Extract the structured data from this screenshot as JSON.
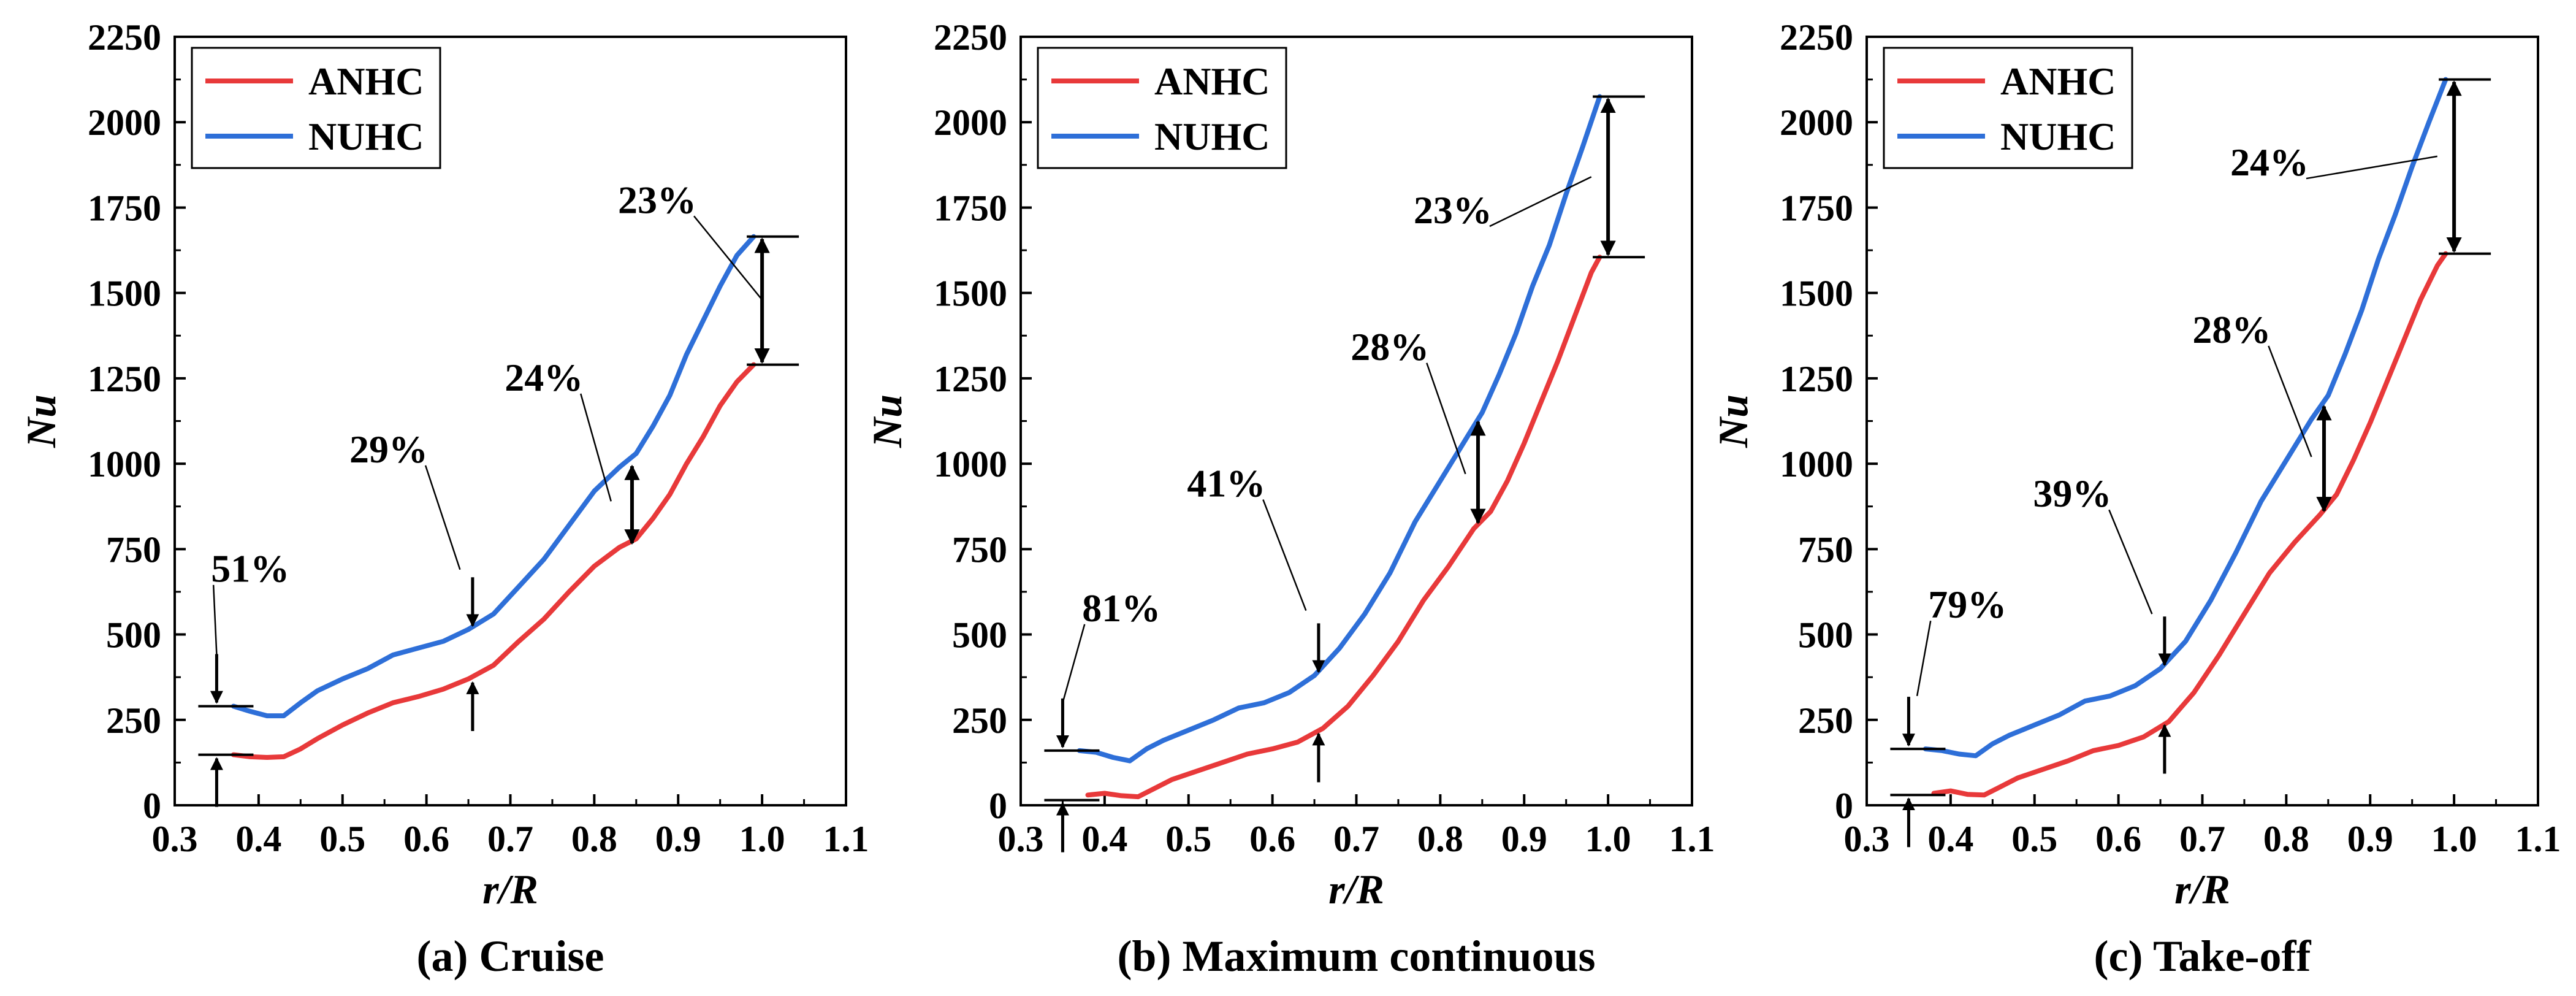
{
  "chart_data": [
    {
      "type": "line",
      "caption": "(a) Cruise",
      "xlabel": "r/R",
      "ylabel": "Nu",
      "xlim": [
        0.3,
        1.1
      ],
      "ylim": [
        0,
        2250
      ],
      "xticks": [
        "0.3",
        "0.4",
        "0.5",
        "0.6",
        "0.7",
        "0.8",
        "0.9",
        "1.0",
        "1.1"
      ],
      "yticks": [
        "0",
        "250",
        "500",
        "750",
        "1000",
        "1250",
        "1500",
        "1750",
        "2000",
        "2250"
      ],
      "legend": {
        "position": "top-left"
      },
      "series": [
        {
          "name": "ANHC",
          "color": "#e8393a",
          "x": [
            0.37,
            0.39,
            0.41,
            0.43,
            0.45,
            0.47,
            0.5,
            0.53,
            0.56,
            0.59,
            0.62,
            0.65,
            0.68,
            0.71,
            0.74,
            0.77,
            0.8,
            0.83,
            0.85,
            0.87,
            0.89,
            0.91,
            0.93,
            0.95,
            0.97,
            0.99
          ],
          "y": [
            148,
            142,
            140,
            142,
            165,
            195,
            235,
            270,
            300,
            318,
            340,
            370,
            410,
            480,
            545,
            625,
            700,
            755,
            780,
            840,
            910,
            1000,
            1080,
            1170,
            1240,
            1290
          ]
        },
        {
          "name": "NUHC",
          "color": "#2e6fd8",
          "x": [
            0.37,
            0.39,
            0.41,
            0.43,
            0.45,
            0.47,
            0.5,
            0.53,
            0.56,
            0.59,
            0.62,
            0.65,
            0.68,
            0.71,
            0.74,
            0.77,
            0.8,
            0.83,
            0.85,
            0.87,
            0.89,
            0.91,
            0.93,
            0.95,
            0.97,
            0.99
          ],
          "y": [
            290,
            275,
            262,
            262,
            300,
            335,
            370,
            400,
            440,
            460,
            480,
            515,
            560,
            640,
            720,
            820,
            920,
            990,
            1030,
            1110,
            1200,
            1320,
            1420,
            1520,
            1610,
            1665
          ]
        }
      ],
      "annotations": [
        {
          "label": "51%",
          "at_r": 0.35,
          "low": 148,
          "high": 290,
          "style": "inward",
          "text_x": 0.39,
          "text_y": 690,
          "leader_to": [
            0.35,
            440
          ]
        },
        {
          "label": "29%",
          "at_r": 0.655,
          "low": 370,
          "high": 515,
          "style": "inward",
          "text_x": 0.555,
          "text_y": 1040,
          "leader_to": [
            0.64,
            690
          ]
        },
        {
          "label": "24%",
          "at_r": 0.845,
          "low": 760,
          "high": 1000,
          "style": "double",
          "text_x": 0.74,
          "text_y": 1250,
          "leader_to": [
            0.82,
            890
          ]
        },
        {
          "label": "23%",
          "at_r": 1.0,
          "low": 1290,
          "high": 1665,
          "style": "double",
          "text_x": 0.875,
          "text_y": 1770,
          "leader_to": [
            1.0,
            1480
          ]
        }
      ]
    },
    {
      "type": "line",
      "caption": "(b) Maximum continuous",
      "xlabel": "r/R",
      "ylabel": "Nu",
      "xlim": [
        0.3,
        1.1
      ],
      "ylim": [
        0,
        2250
      ],
      "xticks": [
        "0.3",
        "0.4",
        "0.5",
        "0.6",
        "0.7",
        "0.8",
        "0.9",
        "1.0",
        "1.1"
      ],
      "yticks": [
        "0",
        "250",
        "500",
        "750",
        "1000",
        "1250",
        "1500",
        "1750",
        "2000",
        "2250"
      ],
      "legend": {
        "position": "top-left"
      },
      "series": [
        {
          "name": "ANHC",
          "color": "#e8393a",
          "x": [
            0.38,
            0.4,
            0.42,
            0.44,
            0.46,
            0.48,
            0.51,
            0.54,
            0.57,
            0.6,
            0.63,
            0.66,
            0.69,
            0.72,
            0.75,
            0.78,
            0.81,
            0.84,
            0.86,
            0.88,
            0.9,
            0.92,
            0.94,
            0.96,
            0.98,
            0.99
          ],
          "y": [
            30,
            35,
            28,
            25,
            50,
            75,
            100,
            125,
            150,
            165,
            185,
            225,
            290,
            380,
            480,
            600,
            700,
            810,
            860,
            950,
            1060,
            1180,
            1300,
            1430,
            1560,
            1605
          ]
        },
        {
          "name": "NUHC",
          "color": "#2e6fd8",
          "x": [
            0.37,
            0.39,
            0.41,
            0.43,
            0.45,
            0.47,
            0.5,
            0.53,
            0.56,
            0.59,
            0.62,
            0.65,
            0.68,
            0.71,
            0.74,
            0.77,
            0.8,
            0.83,
            0.85,
            0.87,
            0.89,
            0.91,
            0.93,
            0.95,
            0.97,
            0.99
          ],
          "y": [
            160,
            155,
            140,
            130,
            165,
            190,
            220,
            250,
            285,
            300,
            330,
            380,
            460,
            560,
            680,
            830,
            950,
            1070,
            1150,
            1260,
            1380,
            1520,
            1640,
            1790,
            1930,
            2075
          ]
        }
      ],
      "annotations": [
        {
          "label": "81%",
          "at_r": 0.35,
          "low": 15,
          "high": 160,
          "style": "inward",
          "text_x": 0.42,
          "text_y": 575,
          "leader_to": [
            0.35,
            300
          ]
        },
        {
          "label": "41%",
          "at_r": 0.655,
          "low": 220,
          "high": 380,
          "style": "inward",
          "text_x": 0.545,
          "text_y": 940,
          "leader_to": [
            0.64,
            570
          ]
        },
        {
          "label": "28%",
          "at_r": 0.845,
          "low": 820,
          "high": 1130,
          "style": "double",
          "text_x": 0.74,
          "text_y": 1340,
          "leader_to": [
            0.83,
            970
          ]
        },
        {
          "label": "23%",
          "at_r": 1.0,
          "low": 1605,
          "high": 2075,
          "style": "double",
          "text_x": 0.815,
          "text_y": 1740,
          "leader_to": [
            0.98,
            1840
          ]
        }
      ]
    },
    {
      "type": "line",
      "caption": "(c) Take-off",
      "xlabel": "r/R",
      "ylabel": "Nu",
      "xlim": [
        0.3,
        1.1
      ],
      "ylim": [
        0,
        2250
      ],
      "xticks": [
        "0.3",
        "0.4",
        "0.5",
        "0.6",
        "0.7",
        "0.8",
        "0.9",
        "1.0",
        "1.1"
      ],
      "yticks": [
        "0",
        "250",
        "500",
        "750",
        "1000",
        "1250",
        "1500",
        "1750",
        "2000",
        "2250"
      ],
      "legend": {
        "position": "top-left"
      },
      "series": [
        {
          "name": "ANHC",
          "color": "#e8393a",
          "x": [
            0.38,
            0.4,
            0.42,
            0.44,
            0.46,
            0.48,
            0.51,
            0.54,
            0.57,
            0.6,
            0.63,
            0.66,
            0.69,
            0.72,
            0.75,
            0.78,
            0.81,
            0.84,
            0.86,
            0.88,
            0.9,
            0.92,
            0.94,
            0.96,
            0.98,
            0.99
          ],
          "y": [
            35,
            42,
            32,
            30,
            55,
            80,
            105,
            130,
            160,
            175,
            200,
            245,
            330,
            440,
            560,
            680,
            770,
            850,
            910,
            1010,
            1120,
            1240,
            1360,
            1480,
            1580,
            1615
          ]
        },
        {
          "name": "NUHC",
          "color": "#2e6fd8",
          "x": [
            0.37,
            0.39,
            0.41,
            0.43,
            0.45,
            0.47,
            0.5,
            0.53,
            0.56,
            0.59,
            0.62,
            0.65,
            0.68,
            0.71,
            0.74,
            0.77,
            0.8,
            0.83,
            0.85,
            0.87,
            0.89,
            0.91,
            0.93,
            0.95,
            0.97,
            0.99
          ],
          "y": [
            165,
            160,
            150,
            145,
            180,
            205,
            235,
            265,
            305,
            320,
            350,
            400,
            480,
            600,
            740,
            890,
            1010,
            1130,
            1200,
            1320,
            1450,
            1600,
            1730,
            1870,
            2000,
            2125
          ]
        }
      ],
      "annotations": [
        {
          "label": "79%",
          "at_r": 0.35,
          "low": 30,
          "high": 165,
          "style": "inward",
          "text_x": 0.42,
          "text_y": 585,
          "leader_to": [
            0.36,
            320
          ]
        },
        {
          "label": "39%",
          "at_r": 0.655,
          "low": 245,
          "high": 400,
          "style": "inward",
          "text_x": 0.545,
          "text_y": 910,
          "leader_to": [
            0.64,
            560
          ]
        },
        {
          "label": "28%",
          "at_r": 0.845,
          "low": 855,
          "high": 1175,
          "style": "double",
          "text_x": 0.735,
          "text_y": 1390,
          "leader_to": [
            0.83,
            1020
          ]
        },
        {
          "label": "24%",
          "at_r": 1.0,
          "low": 1615,
          "high": 2125,
          "style": "double",
          "text_x": 0.78,
          "text_y": 1880,
          "leader_to": [
            0.98,
            1900
          ]
        }
      ]
    }
  ]
}
